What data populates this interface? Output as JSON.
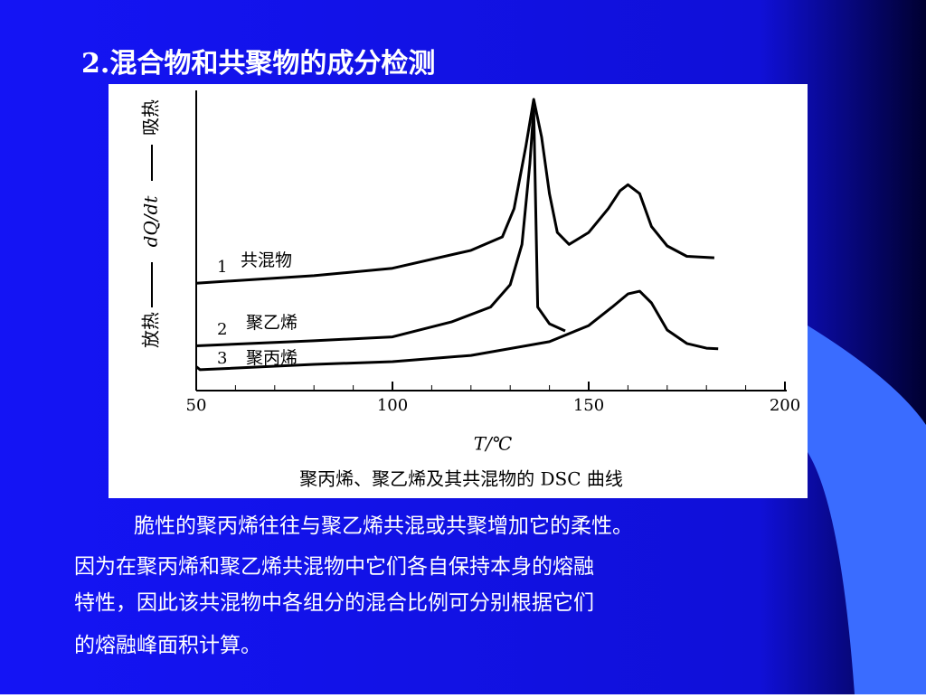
{
  "slide_title": "2.混合物和共聚物的成分检测",
  "chart_data": {
    "type": "line",
    "caption": "聚丙烯、聚乙烯及其共混物的 DSC 曲线",
    "x_label": "T/℃",
    "y_label_left": "放热",
    "y_label": "dQ/dt",
    "y_label_right": "吸热",
    "xlim": [
      50,
      200
    ],
    "xticks": [
      50,
      100,
      150,
      200
    ],
    "ylim": [
      0,
      100
    ],
    "series": [
      {
        "number": "1",
        "name": "共混物",
        "color": "#000000",
        "x": [
          50,
          80,
          100,
          120,
          128,
          131,
          134,
          136,
          138,
          140,
          142,
          145,
          150,
          155,
          158,
          160,
          163,
          166,
          170,
          175,
          182
        ],
        "values": [
          36,
          38.5,
          41,
          47,
          51.5,
          61,
          82,
          97.6,
          85,
          66,
          53,
          49,
          53,
          61,
          67,
          69,
          66,
          55,
          48.5,
          45,
          44.5
        ]
      },
      {
        "number": "2",
        "name": "聚乙烯",
        "color": "#000000",
        "x": [
          50,
          80,
          100,
          115,
          125,
          130,
          133,
          135,
          136,
          137,
          140,
          144
        ],
        "values": [
          15,
          16.7,
          18,
          23,
          28,
          35.5,
          49,
          76,
          94.5,
          28,
          22.4,
          20
        ]
      },
      {
        "number": "3",
        "name": "聚丙烯",
        "color": "#000000",
        "x": [
          50,
          51,
          80,
          100,
          120,
          140,
          150,
          156,
          160,
          163,
          166,
          170,
          175,
          180,
          183
        ],
        "values": [
          8,
          7,
          8.8,
          9.7,
          11.8,
          16.4,
          21.8,
          28,
          32.4,
          33.3,
          29.4,
          20.3,
          15.8,
          14.2,
          14
        ]
      }
    ]
  },
  "paragraph": [
    "脆性的聚丙烯往往与聚乙烯共混或共聚增加它的柔性。",
    "因为在聚丙烯和聚乙烯共混物中它们各自保持本身的熔融",
    "特性，因此该共混物中各组分的混合比例可分别根据它们",
    "的熔融峰面积计算。"
  ]
}
